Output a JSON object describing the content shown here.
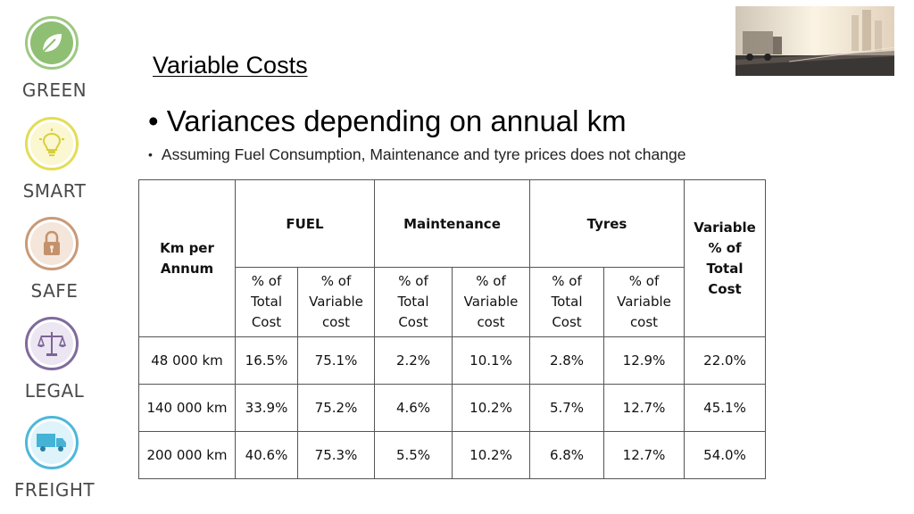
{
  "sidebar": {
    "badges": [
      {
        "label": "GREEN",
        "icon": "leaf-icon",
        "color": "#8fbf73"
      },
      {
        "label": "SMART",
        "icon": "lightbulb-icon",
        "color": "#e1da4a"
      },
      {
        "label": "SAFE",
        "icon": "padlock-icon",
        "color": "#c5916c"
      },
      {
        "label": "LEGAL",
        "icon": "scales-icon",
        "color": "#7a6496"
      },
      {
        "label": "FREIGHT",
        "icon": "truck-icon",
        "color": "#44b3d6"
      }
    ]
  },
  "header": {
    "title": "Variable Costs",
    "bullet_main": "Variances depending on annual km",
    "bullet_sub": "Assuming Fuel Consumption, Maintenance and tyre prices does not change",
    "hero_icon": "truck-highway-photo-icon"
  },
  "table": {
    "km_header": "Km per Annum",
    "groups": [
      "FUEL",
      "Maintenance",
      "Tyres"
    ],
    "variable_header": "Variable % of Total Cost",
    "sub_total": "% of Total Cost",
    "sub_variable": "% of Variable cost",
    "rows": [
      {
        "km": "48 000 km",
        "fuel_total": "16.5%",
        "fuel_var": "75.1%",
        "maint_total": "2.2%",
        "maint_var": "10.1%",
        "tyres_total": "2.8%",
        "tyres_var": "12.9%",
        "variable": "22.0%"
      },
      {
        "km": "140 000 km",
        "fuel_total": "33.9%",
        "fuel_var": "75.2%",
        "maint_total": "4.6%",
        "maint_var": "10.2%",
        "tyres_total": "5.7%",
        "tyres_var": "12.7%",
        "variable": "45.1%"
      },
      {
        "km": "200 000 km",
        "fuel_total": "40.6%",
        "fuel_var": "75.3%",
        "maint_total": "5.5%",
        "maint_var": "10.2%",
        "tyres_total": "6.8%",
        "tyres_var": "12.7%",
        "variable": "54.0%"
      }
    ]
  }
}
